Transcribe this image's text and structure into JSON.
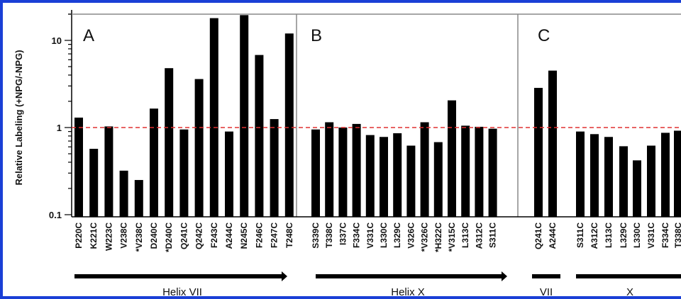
{
  "chart_data": {
    "type": "bar",
    "ylabel": "Relative Labeling (+NPG/-NPG)",
    "yscale": "log",
    "ylim": [
      0.1,
      20
    ],
    "yticks": [
      {
        "value": 0.1,
        "label": "0.1"
      },
      {
        "value": 1,
        "label": "1"
      },
      {
        "value": 10,
        "label": "10"
      }
    ],
    "reference_line": {
      "value": 1,
      "style": "dashed",
      "color": "#e03030"
    },
    "colors": {
      "bar": "#000000",
      "frame": "#1a3fd6",
      "panel_border": "#888888"
    },
    "panels": [
      {
        "letter": "A",
        "helix_labels": [
          {
            "text": "Helix VII"
          }
        ],
        "categories": [
          "P220C",
          "K221C",
          "W223C",
          "V238C",
          "*V238C",
          "D240C",
          "*D240C",
          "Q241C",
          "Q242C",
          "F243C",
          "A244C",
          "N245C",
          "F246C",
          "F247C",
          "T248C"
        ],
        "values": [
          1.3,
          0.57,
          1.03,
          0.32,
          0.25,
          1.65,
          4.8,
          0.95,
          3.6,
          18,
          0.9,
          19.5,
          6.8,
          1.25,
          12
        ]
      },
      {
        "letter": "B",
        "helix_labels": [
          {
            "text": "Helix X"
          }
        ],
        "categories": [
          "S339C",
          "T338C",
          "I337C",
          "F334C",
          "V331C",
          "L330C",
          "L329C",
          "V326C",
          "*V326C",
          "*H322C",
          "*V315C",
          "L313C",
          "A312C",
          "S311C"
        ],
        "values": [
          0.95,
          1.15,
          1.0,
          1.1,
          0.82,
          0.78,
          0.86,
          0.62,
          1.15,
          0.68,
          2.05,
          1.05,
          1.02,
          0.97
        ]
      },
      {
        "letter": "C",
        "helix_labels": [
          {
            "text": "VII"
          },
          {
            "text": "X"
          }
        ],
        "categories": [
          "Q241C",
          "A244C",
          "S311C",
          "A312C",
          "L313C",
          "L329C",
          "L330C",
          "V331C",
          "F334C",
          "T338C"
        ],
        "values": [
          2.85,
          4.5,
          0.9,
          0.84,
          0.78,
          0.61,
          0.42,
          0.62,
          0.87,
          0.92
        ]
      }
    ]
  }
}
